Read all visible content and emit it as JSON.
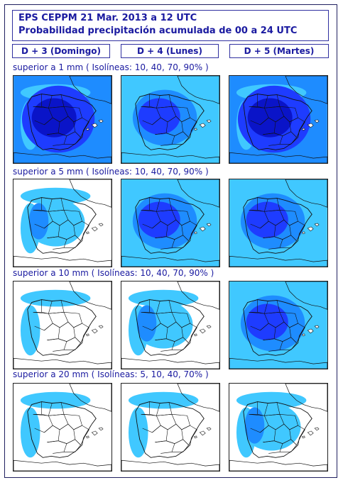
{
  "header": {
    "line1": "EPS   CEPPM    21 Mar. 2013   a   12 UTC",
    "line2": "Probabilidad precipitación acumulada de 00 a 24 UTC"
  },
  "days": [
    {
      "label": "D + 3   (Domingo)"
    },
    {
      "label": "D + 4   (Lunes)"
    },
    {
      "label": "D + 5   (Martes)"
    }
  ],
  "rows": [
    {
      "label": "superior a 1 mm    ( Isolíneas: 10, 40, 70, 90% )",
      "levels": [
        4,
        3,
        4
      ]
    },
    {
      "label": "superior a 5 mm    ( Isolíneas: 10, 40, 70, 90% )",
      "levels": [
        2,
        3,
        3
      ]
    },
    {
      "label": "superior a 10 mm    ( Isolíneas: 10, 40, 70, 90% )",
      "levels": [
        1,
        2,
        3
      ]
    },
    {
      "label": "superior a 20 mm    ( Isolíneas: 5, 10, 40, 70% )",
      "levels": [
        1,
        1,
        2
      ]
    }
  ],
  "colors": {
    "p10": "#40c8ff",
    "p40": "#1e8cff",
    "p70": "#1e3cff",
    "p90": "#0a14c8",
    "land": "#ffffff",
    "text": "#1a1aa0"
  }
}
